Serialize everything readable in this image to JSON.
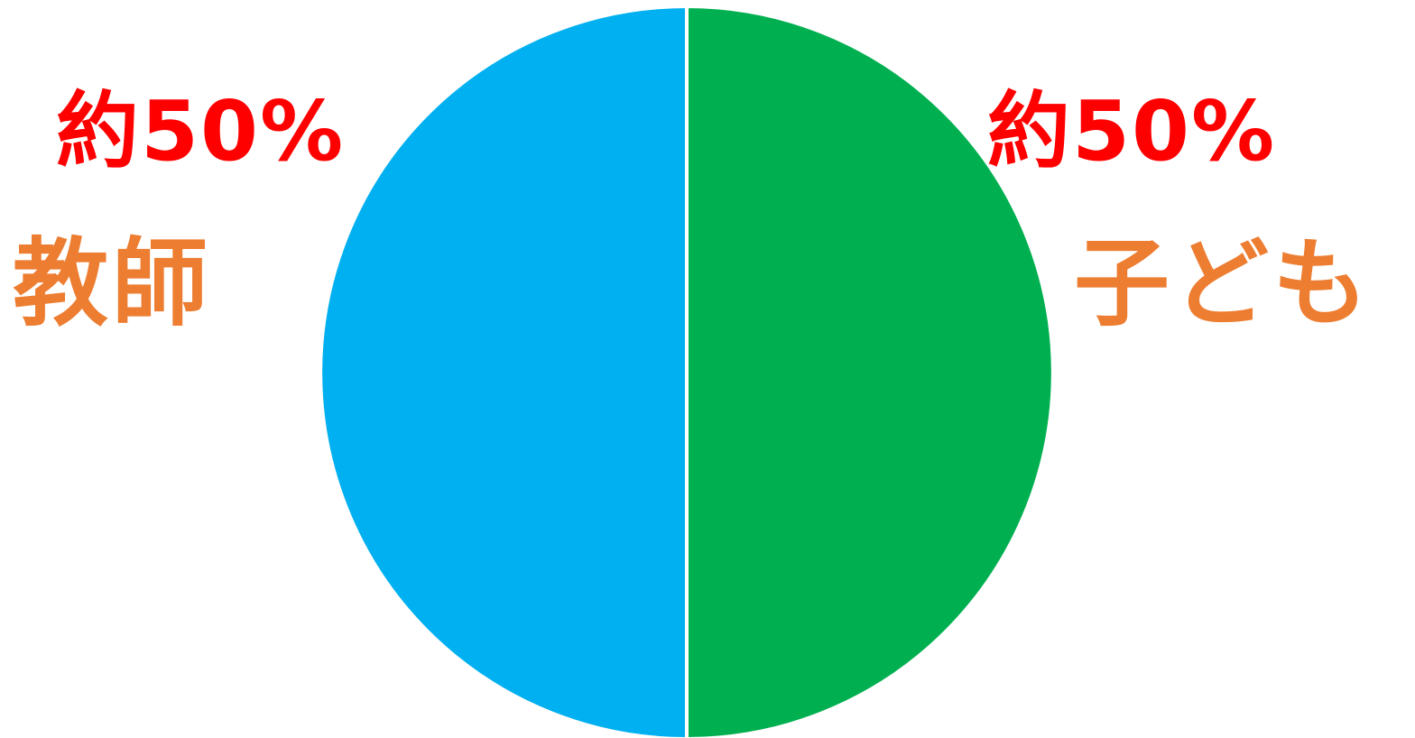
{
  "chart_data": {
    "type": "pie",
    "title": "",
    "slices": [
      {
        "name": "子ども",
        "value": 50,
        "color": "#00B050",
        "percent_label": "約50%"
      },
      {
        "name": "教師",
        "value": 50,
        "color": "#00B0F0",
        "percent_label": "約50%"
      }
    ],
    "label_colors": {
      "percent": "#FF0000",
      "name": "#ED7D31"
    },
    "slice_border_color": "#FFFFFF"
  }
}
